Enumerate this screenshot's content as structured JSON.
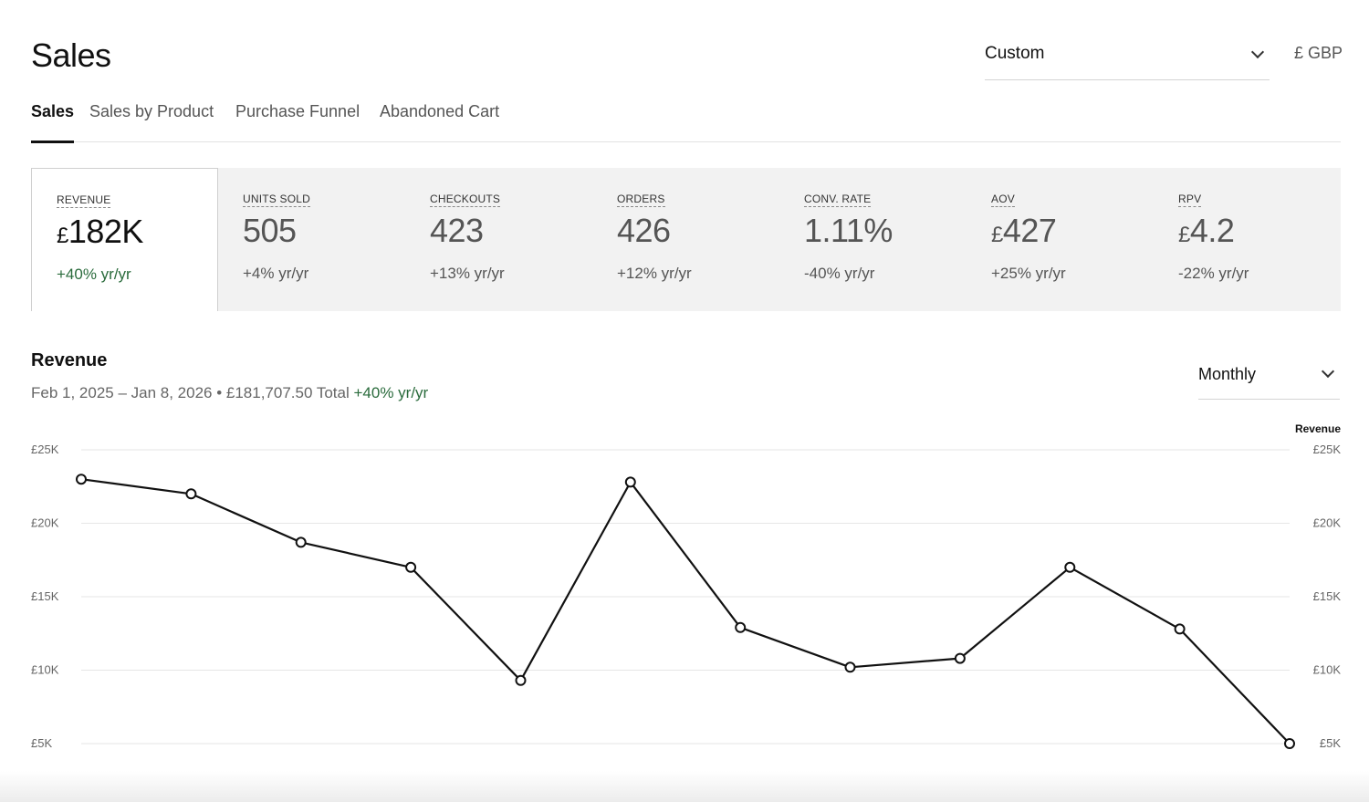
{
  "header": {
    "title": "Sales",
    "range_value": "Custom",
    "currency": "£ GBP"
  },
  "tabs": [
    {
      "label": "Sales",
      "active": true
    },
    {
      "label": "Sales by Product",
      "active": false
    },
    {
      "label": "Purchase Funnel",
      "active": false
    },
    {
      "label": "Abandoned Cart",
      "active": false
    }
  ],
  "metrics": [
    {
      "label": "REVENUE",
      "currency": "£",
      "value": "182K",
      "change": "+40% yr/yr",
      "positive": true
    },
    {
      "label": "UNITS SOLD",
      "currency": "",
      "value": "505",
      "change": "+4% yr/yr",
      "positive": false
    },
    {
      "label": "CHECKOUTS",
      "currency": "",
      "value": "423",
      "change": "+13% yr/yr",
      "positive": false
    },
    {
      "label": "ORDERS",
      "currency": "",
      "value": "426",
      "change": "+12% yr/yr",
      "positive": false
    },
    {
      "label": "CONV. RATE",
      "currency": "",
      "value": "1.11%",
      "change": "-40% yr/yr",
      "positive": false
    },
    {
      "label": "AOV",
      "currency": "£",
      "value": "427",
      "change": "+25% yr/yr",
      "positive": false
    },
    {
      "label": "RPV",
      "currency": "£",
      "value": "4.2",
      "change": "-22% yr/yr",
      "positive": false
    }
  ],
  "chart": {
    "title": "Revenue",
    "subtitle": "Feb 1, 2025 – Jan 8, 2026 • £181,707.50 Total",
    "subtitle_change": "+40% yr/yr",
    "period_value": "Monthly"
  },
  "chart_data": {
    "type": "line",
    "series": [
      {
        "name": "Revenue",
        "values": [
          23000,
          22000,
          18700,
          17000,
          9300,
          22800,
          12900,
          10200,
          10800,
          17000,
          12800,
          5000
        ]
      }
    ],
    "ylim": [
      5000,
      25000
    ],
    "yticks": [
      {
        "value": 25000,
        "label": "£25K"
      },
      {
        "value": 20000,
        "label": "£20K"
      },
      {
        "value": 15000,
        "label": "£15K"
      },
      {
        "value": 10000,
        "label": "£10K"
      },
      {
        "value": 5000,
        "label": "£5K"
      }
    ],
    "grid": true,
    "legend": "top-right"
  }
}
